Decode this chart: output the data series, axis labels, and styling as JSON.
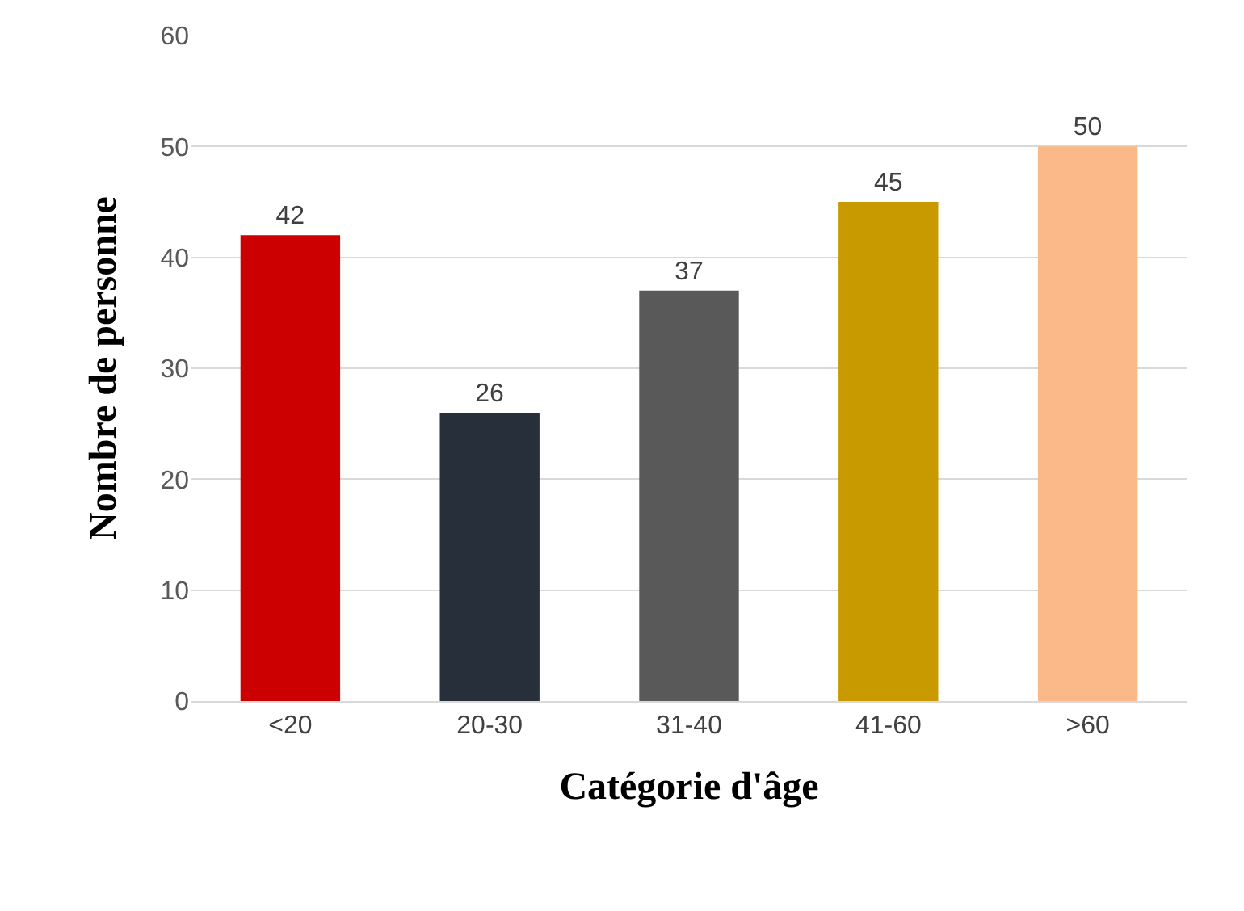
{
  "chart_data": {
    "type": "bar",
    "categories": [
      "<20",
      "20-30",
      "31-40",
      "41-60",
      ">60"
    ],
    "values": [
      42,
      26,
      37,
      45,
      50
    ],
    "colors": [
      "#cc0000",
      "#262f3a",
      "#595959",
      "#c89a00",
      "#fbb98a"
    ],
    "xlabel": "Catégorie d'âge",
    "ylabel": "Nombre de personne",
    "ylim": [
      0,
      60
    ],
    "yticks": [
      0,
      10,
      20,
      30,
      40,
      50,
      60
    ],
    "grid": "y",
    "data_labels": true
  }
}
